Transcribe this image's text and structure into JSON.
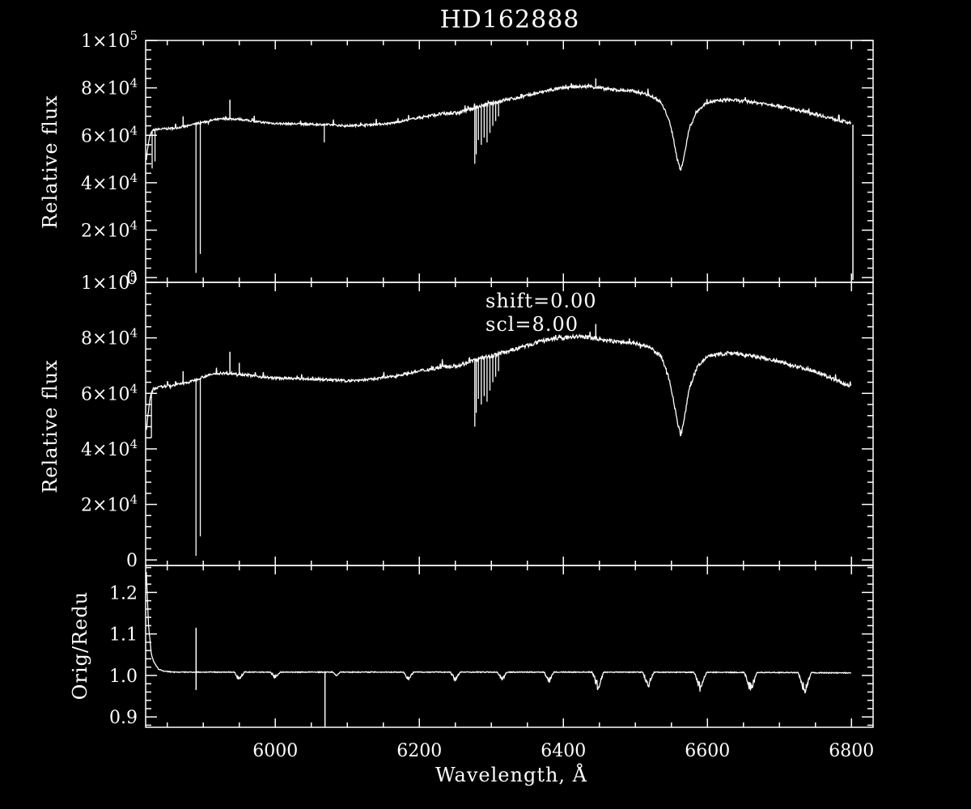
{
  "title": "HD162888",
  "colors": {
    "background": "#000000",
    "foreground": "#ffffff"
  },
  "chart_data": [
    {
      "type": "line",
      "panel": "top",
      "title": "HD162888",
      "xlabel": "",
      "ylabel": "Relative flux",
      "xlim": [
        5820,
        6830
      ],
      "ylim": [
        -2000,
        100000
      ],
      "y_ticks": [
        {
          "v": 0,
          "base": "0",
          "exp": ""
        },
        {
          "v": 20000,
          "base": "2×10",
          "exp": "4"
        },
        {
          "v": 40000,
          "base": "4×10",
          "exp": "4"
        },
        {
          "v": 60000,
          "base": "6×10",
          "exp": "4"
        },
        {
          "v": 80000,
          "base": "8×10",
          "exp": "4"
        },
        {
          "v": 100000,
          "base": "1×10",
          "exp": "5"
        }
      ],
      "series": [
        {
          "x": [
            5821,
            5823,
            5826,
            5830,
            5835,
            5845,
            5860,
            5880,
            5890,
            5900,
            5915,
            5930,
            5950,
            5980,
            6000,
            6030,
            6070,
            6100,
            6130,
            6160,
            6200,
            6230,
            6255,
            6270,
            6300,
            6320,
            6340,
            6360,
            6380,
            6400,
            6420,
            6440,
            6460,
            6480,
            6500,
            6520,
            6535,
            6545,
            6552,
            6558,
            6563,
            6568,
            6575,
            6585,
            6600,
            6630,
            6660,
            6690,
            6720,
            6750,
            6780,
            6800
          ],
          "y": [
            50000,
            55000,
            60000,
            62000,
            62500,
            62700,
            63000,
            64000,
            65000,
            65500,
            66500,
            67000,
            66800,
            65500,
            65000,
            64800,
            64500,
            64000,
            64500,
            65000,
            67500,
            69000,
            69500,
            71000,
            73500,
            75000,
            76000,
            77500,
            79000,
            80000,
            80500,
            80500,
            79500,
            79000,
            78500,
            77000,
            74000,
            68000,
            60000,
            50000,
            45000,
            52000,
            63000,
            70000,
            74000,
            75000,
            74000,
            73000,
            71000,
            69000,
            66500,
            65000
          ]
        }
      ],
      "absorption_lines": [
        {
          "x": 5889.9,
          "y": 2000
        },
        {
          "x": 5895.9,
          "y": 10000
        },
        {
          "x": 5829,
          "y": 46000
        },
        {
          "x": 5833,
          "y": 49000
        },
        {
          "x": 6068,
          "y": 57000
        },
        {
          "x": 6277,
          "y": 48000
        },
        {
          "x": 6279,
          "y": 52000
        },
        {
          "x": 6282,
          "y": 58000
        },
        {
          "x": 6286,
          "y": 56000
        },
        {
          "x": 6290,
          "y": 59000
        },
        {
          "x": 6294,
          "y": 57000
        },
        {
          "x": 6298,
          "y": 61000
        },
        {
          "x": 6302,
          "y": 64000
        },
        {
          "x": 6306,
          "y": 66000
        },
        {
          "x": 6310,
          "y": 68000
        }
      ],
      "emission_spikes": [
        {
          "x": 5872,
          "y": 68000
        },
        {
          "x": 5937,
          "y": 75000
        },
        {
          "x": 6445,
          "y": 84000
        }
      ],
      "end_drop": {
        "x": 6802,
        "from": 64500,
        "to": -1000
      }
    },
    {
      "type": "line",
      "panel": "middle",
      "xlabel": "",
      "ylabel": "Relative flux",
      "xlim": [
        5820,
        6830
      ],
      "ylim": [
        -2000,
        100000
      ],
      "y_ticks": [
        {
          "v": 0,
          "base": "0",
          "exp": ""
        },
        {
          "v": 20000,
          "base": "2×10",
          "exp": "4"
        },
        {
          "v": 40000,
          "base": "4×10",
          "exp": "4"
        },
        {
          "v": 60000,
          "base": "6×10",
          "exp": "4"
        },
        {
          "v": 80000,
          "base": "8×10",
          "exp": "4"
        },
        {
          "v": 100000,
          "base": "1×10",
          "exp": "5"
        }
      ],
      "annotations": [
        "shift=0.00",
        "scl=8.00"
      ],
      "series": [
        {
          "x": [
            5821,
            5823,
            5826,
            5830,
            5835,
            5845,
            5860,
            5880,
            5890,
            5900,
            5915,
            5930,
            5950,
            5980,
            6000,
            6030,
            6070,
            6100,
            6130,
            6160,
            6200,
            6230,
            6255,
            6270,
            6300,
            6320,
            6340,
            6360,
            6380,
            6400,
            6420,
            6440,
            6460,
            6480,
            6500,
            6520,
            6535,
            6545,
            6552,
            6558,
            6563,
            6568,
            6575,
            6585,
            6600,
            6630,
            6660,
            6690,
            6720,
            6750,
            6780,
            6800
          ],
          "y": [
            46000,
            52000,
            58000,
            61500,
            62000,
            62500,
            63000,
            64000,
            65000,
            66000,
            67000,
            67300,
            67000,
            66000,
            65500,
            65300,
            65000,
            64500,
            65000,
            66000,
            68000,
            69500,
            70000,
            71500,
            73500,
            75000,
            76500,
            78000,
            79500,
            80000,
            80500,
            80000,
            79000,
            78500,
            78000,
            76500,
            73500,
            67000,
            59000,
            50000,
            45000,
            51000,
            62000,
            69000,
            73500,
            74500,
            73500,
            72000,
            70000,
            68000,
            64500,
            62500
          ]
        }
      ],
      "absorption_lines": [
        {
          "x": 5889.9,
          "y": 1500
        },
        {
          "x": 5895.9,
          "y": 8500
        },
        {
          "x": 5828,
          "y": 44000
        },
        {
          "x": 6277,
          "y": 48000
        },
        {
          "x": 6279,
          "y": 53000
        },
        {
          "x": 6282,
          "y": 58000
        },
        {
          "x": 6286,
          "y": 56000
        },
        {
          "x": 6290,
          "y": 59000
        },
        {
          "x": 6294,
          "y": 57000
        },
        {
          "x": 6298,
          "y": 61000
        },
        {
          "x": 6302,
          "y": 64000
        },
        {
          "x": 6306,
          "y": 66000
        },
        {
          "x": 6310,
          "y": 68000
        }
      ],
      "emission_spikes": [
        {
          "x": 5872,
          "y": 68000
        },
        {
          "x": 5937,
          "y": 75000
        },
        {
          "x": 5950,
          "y": 71000
        },
        {
          "x": 6445,
          "y": 85000
        }
      ]
    },
    {
      "type": "line",
      "panel": "bottom",
      "xlabel": "Wavelength, Å",
      "ylabel": "Orig/Redu",
      "xlim": [
        5820,
        6830
      ],
      "ylim": [
        0.875,
        1.265
      ],
      "x_ticks": [
        6000,
        6200,
        6400,
        6600,
        6800
      ],
      "y_ticks": [
        {
          "v": 0.9,
          "base": "0.9",
          "exp": ""
        },
        {
          "v": 1.0,
          "base": "1.0",
          "exp": ""
        },
        {
          "v": 1.1,
          "base": "1.1",
          "exp": ""
        },
        {
          "v": 1.2,
          "base": "1.2",
          "exp": ""
        }
      ],
      "series": [
        {
          "x": [
            5821,
            5824,
            5828,
            5832,
            5838,
            5846,
            5860,
            5890,
            5950,
            6100,
            6300,
            6500,
            6700,
            6800
          ],
          "y": [
            1.25,
            1.12,
            1.05,
            1.03,
            1.015,
            1.01,
            1.008,
            1.008,
            1.008,
            1.008,
            1.008,
            1.008,
            1.007,
            1.006
          ]
        }
      ],
      "dips": [
        {
          "x": 5950,
          "y": 0.985,
          "w": 14
        },
        {
          "x": 6000,
          "y": 0.99,
          "w": 14
        },
        {
          "x": 6085,
          "y": 0.995,
          "w": 10
        },
        {
          "x": 6185,
          "y": 0.985,
          "w": 14
        },
        {
          "x": 6250,
          "y": 0.985,
          "w": 14
        },
        {
          "x": 6315,
          "y": 0.985,
          "w": 14
        },
        {
          "x": 6380,
          "y": 0.98,
          "w": 14
        },
        {
          "x": 6448,
          "y": 0.96,
          "w": 16
        },
        {
          "x": 6518,
          "y": 0.965,
          "w": 16
        },
        {
          "x": 6590,
          "y": 0.96,
          "w": 18
        },
        {
          "x": 6660,
          "y": 0.955,
          "w": 18
        },
        {
          "x": 6735,
          "y": 0.95,
          "w": 18
        }
      ],
      "spikes": [
        {
          "x": 5890,
          "from": 1.115,
          "to": 0.965
        },
        {
          "x": 6069,
          "from": 1.01,
          "to": 0.875
        }
      ]
    }
  ]
}
